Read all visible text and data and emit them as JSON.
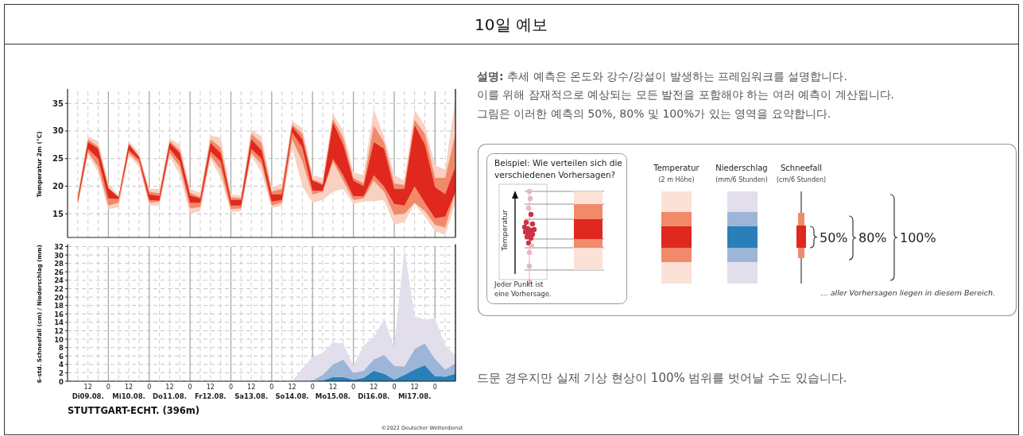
{
  "chart_data": [
    {
      "type": "area",
      "ylabel": "Temperatur 2m (°C)",
      "ylim": [
        10.7,
        37.2
      ],
      "yticks": [
        15,
        20,
        25,
        30,
        35
      ],
      "tick_labels": "y",
      "grid": true,
      "categories": [
        null,
        null,
        null,
        null,
        null,
        null,
        null,
        null,
        null,
        null,
        null,
        null,
        null,
        null,
        null,
        null,
        null,
        null,
        null,
        null,
        null,
        null,
        null,
        null,
        null,
        null,
        null,
        null,
        null,
        null,
        null,
        null,
        null,
        null,
        null,
        null,
        null,
        null
      ],
      "series": [
        {
          "color": "#f9d0c2",
          "values": [
            null,
            null,
            null,
            null,
            null,
            null,
            null,
            null,
            null,
            null,
            null,
            null,
            null,
            null,
            null,
            null,
            null,
            null,
            null,
            null,
            null,
            null,
            null,
            null,
            null,
            null,
            null,
            null,
            null,
            null,
            null,
            null,
            null,
            null,
            null,
            null,
            null,
            null
          ],
          "lower": [
            16.2,
            25.8,
            22.5,
            15.8,
            16.2,
            25.5,
            23.5,
            16.5,
            16.5,
            25.5,
            22,
            15,
            15.5,
            25,
            21.5,
            15.3,
            15.5,
            25.5,
            22.5,
            16,
            16.5,
            27,
            20,
            17,
            17.5,
            19,
            19.5,
            16.8,
            17.2,
            17.3,
            17.5,
            13,
            13.5,
            16.8,
            14.5,
            11.8,
            11.2,
            17
          ],
          "upper": [
            18.5,
            29,
            28.2,
            20.5,
            18.3,
            28.2,
            26,
            19.5,
            19.5,
            28.7,
            27.5,
            19.5,
            18.8,
            29.2,
            28.8,
            18.5,
            18.3,
            30.2,
            29,
            19.8,
            20.5,
            31.8,
            30.5,
            22,
            21.5,
            33.2,
            30,
            22.5,
            22,
            34,
            29,
            22,
            21,
            33.8,
            31,
            23.8,
            23,
            36
          ]
        },
        {
          "color": "#f08a6a",
          "values": [
            null,
            null,
            null,
            null,
            null,
            null,
            null,
            null,
            null,
            null,
            null,
            null,
            null,
            null,
            null,
            null,
            null,
            null,
            null,
            null,
            null,
            null,
            null,
            null,
            null,
            null,
            null,
            null,
            null,
            null,
            null,
            null,
            null,
            null,
            null,
            null,
            null,
            null
          ],
          "lower": [
            16.8,
            26.2,
            23.5,
            16.5,
            17,
            26,
            24.2,
            17,
            17.2,
            26,
            23.5,
            16,
            16.2,
            25.5,
            23,
            15.8,
            16,
            26,
            24,
            16.5,
            17,
            28.5,
            24.5,
            18.5,
            19,
            24.5,
            21,
            17.5,
            17.8,
            21,
            19,
            14.8,
            15,
            17,
            15.5,
            13,
            12.5,
            19
          ],
          "upper": [
            18.2,
            28.5,
            27.2,
            19.7,
            18,
            27.8,
            25.5,
            19,
            18.7,
            28.2,
            26.5,
            18.8,
            18,
            28.5,
            27,
            18,
            17.8,
            29.5,
            27.8,
            19,
            19.5,
            31.2,
            29.5,
            21.2,
            20.5,
            32.2,
            28.8,
            21.5,
            20.5,
            31,
            28,
            20.5,
            20.2,
            32,
            29.5,
            21.5,
            21.5,
            29.5
          ]
        },
        {
          "color": "#e0281e",
          "values": [
            null,
            null,
            null,
            null,
            null,
            null,
            null,
            null,
            null,
            null,
            null,
            null,
            null,
            null,
            null,
            null,
            null,
            null,
            null,
            null,
            null,
            null,
            null,
            null,
            null,
            null,
            null,
            null,
            null,
            null,
            null,
            null,
            null,
            null,
            null,
            null,
            null,
            null
          ],
          "lower": [
            17.2,
            26.8,
            25,
            17.8,
            17.7,
            26.5,
            24.8,
            17.5,
            17.4,
            26.8,
            24.5,
            17,
            17,
            26.3,
            24.5,
            16.5,
            16.5,
            26.8,
            25,
            17.2,
            17.5,
            29.8,
            27,
            19.2,
            19.2,
            25,
            22,
            18.2,
            18.2,
            22,
            20,
            16.8,
            16.5,
            20,
            17,
            14.2,
            14.5,
            19
          ],
          "upper": [
            17.8,
            28,
            26.8,
            19.6,
            18,
            27.5,
            25.3,
            18.5,
            18.2,
            27.8,
            26,
            18.3,
            17.8,
            27.8,
            26,
            17.5,
            17.5,
            28.5,
            26.5,
            18.5,
            18.5,
            30.8,
            28.5,
            21,
            20.2,
            31.5,
            27.5,
            21,
            20,
            28,
            26.8,
            19.5,
            19.5,
            31,
            27.5,
            19.8,
            18.5,
            23.5
          ]
        }
      ]
    },
    {
      "type": "area",
      "stacked": true,
      "ylabel": "6-std. Schneefall (cm) / Niederschlag (mm)",
      "ylim": [
        0,
        32
      ],
      "yticks": [
        0,
        2,
        4,
        6,
        8,
        10,
        12,
        14,
        16,
        18,
        20,
        22,
        24,
        26,
        28,
        30,
        32
      ],
      "grid": true,
      "categories": [
        null,
        "12\nDi09.08.",
        null,
        "0",
        null,
        "12\nMi10.08.",
        null,
        "0",
        null,
        "12\nDo11.08.",
        null,
        "0",
        null,
        "12\nFr12.08.",
        null,
        "0",
        null,
        "12\nSa13.08.",
        null,
        "0",
        null,
        "12\nSo14.08.",
        null,
        "0",
        null,
        "12\nMo15.08.",
        null,
        "0",
        null,
        "12\nDi16.08.",
        null,
        "0",
        null,
        "12\nMi17.08.",
        null,
        "0",
        null,
        null
      ],
      "series": [
        {
          "color": "#2a7fb8",
          "values": [
            0,
            0,
            0,
            0,
            0,
            0,
            0,
            0,
            0,
            0,
            0,
            0,
            0,
            0,
            0,
            0,
            0,
            0,
            0,
            0,
            0,
            0,
            0,
            0,
            0.2,
            1,
            1,
            0.4,
            0.8,
            2.5,
            1.8,
            0.4,
            1.5,
            2.8,
            3.8,
            1.2,
            1.1,
            1.8
          ]
        },
        {
          "color": "#9db6d8",
          "values": [
            0,
            0,
            0,
            0,
            0,
            0,
            0,
            0,
            0,
            0,
            0,
            0,
            0,
            0,
            0,
            0,
            0,
            0,
            0,
            0,
            0,
            0,
            0,
            0.2,
            1.3,
            3,
            4.2,
            1.6,
            1.7,
            2.7,
            4.5,
            3.3,
            2,
            4.9,
            5.2,
            4.1,
            1.7,
            2.5
          ]
        },
        {
          "color": "#e2deeb",
          "values": [
            0,
            0,
            0,
            0,
            0,
            0,
            0,
            0,
            0,
            0,
            0,
            0,
            0,
            0,
            0,
            0,
            0,
            0,
            0,
            0,
            0,
            0,
            3,
            5.6,
            5.3,
            5.2,
            3.8,
            1.7,
            6,
            5.3,
            8.5,
            4.5,
            28,
            7.8,
            5.6,
            9.7,
            5.7,
            1.9
          ]
        }
      ],
      "annotations": [
        "STUTTGART-ECHT. (396m)",
        "©2022 Deutscher Wetterdienst"
      ]
    },
    {
      "type": "other",
      "title": "10일 예보",
      "annotations": [
        "**설명:** 추세 예측은 온도와 강수/강설이 발생하는 프레임워크를 설명합니다.",
        "이를 위해 잠재적으로 예상되는 모든 발전을 포함해야 하는 여러 예측이 계산됩니다.",
        "그림은 이러한 예측의 50%, 80% 및 100%가 있는 영역을 요약합니다.",
        "Beispiel: Wie verteilen sich die verschiedenen Vorhersagen?",
        "Temperatur",
        "Jeder Punkt ist eine Vorhersage.",
        "Temperatur",
        "(2 m Höhe)",
        "Niederschlag",
        "(mm/6 Stunden)",
        "Schneefall",
        "(cm/6 Stunden)",
        "50%",
        "80%",
        "100%",
        "... aller Vorhersagen liegen in diesem Bereich.",
        "드문 경우지만 실제 기상 현상이 100% 범위를 벗어날 수도 있습니다."
      ]
    }
  ]
}
